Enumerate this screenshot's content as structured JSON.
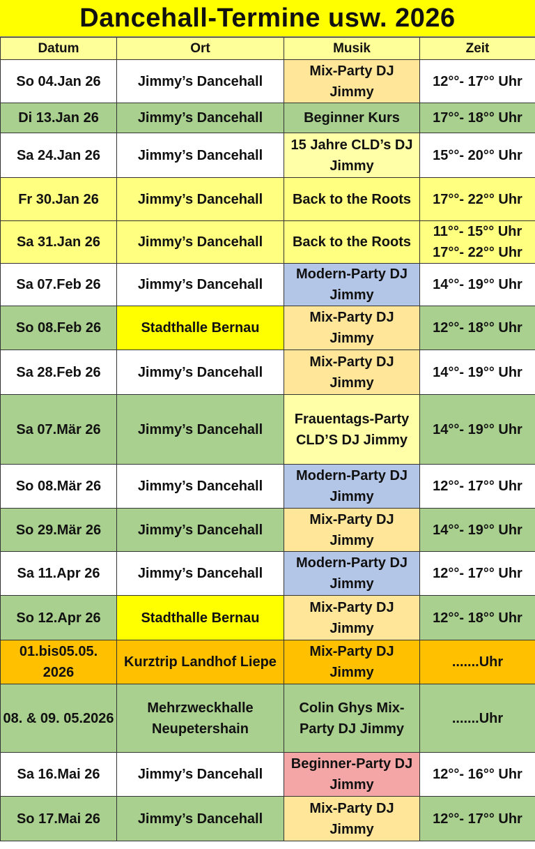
{
  "title": "Dancehall-Termine usw. 2026",
  "headers": [
    "Datum",
    "Ort",
    "Musik",
    "Zeit"
  ],
  "colors": {
    "white": "#ffffff",
    "green": "#a9d08e",
    "yellow_row": "#ffff80",
    "yellow": "#ffff00",
    "light_yellow": "#ffffa8",
    "peach": "#ffe699",
    "blue": "#b4c6e7",
    "orange": "#ffc000",
    "pink": "#f4a6a6",
    "header": "#ffff99"
  },
  "rows": [
    {
      "datum": "So 04.Jan 26",
      "ort": "Jimmy’s Dancehall",
      "musik": "Mix-Party DJ Jimmy",
      "zeit": "12°°- 17°° Uhr",
      "bg": "white",
      "musik_bg": "peach"
    },
    {
      "datum": "Di 13.Jan 26",
      "ort": "Jimmy’s Dancehall",
      "musik": "Beginner Kurs",
      "zeit": "17°°- 18°° Uhr",
      "bg": "green"
    },
    {
      "datum": "Sa 24.Jan 26",
      "ort": "Jimmy’s Dancehall",
      "musik": "15 Jahre CLD’s DJ Jimmy",
      "zeit": "15°°- 20°° Uhr",
      "bg": "white",
      "musik_bg": "light_yellow"
    },
    {
      "datum": "Fr 30.Jan 26",
      "ort": "Jimmy’s Dancehall",
      "musik": "Back to the Roots",
      "zeit": "17°°- 22°° Uhr",
      "bg": "yellow_row"
    },
    {
      "datum": "Sa 31.Jan 26",
      "ort": "Jimmy’s Dancehall",
      "musik": "Back to the Roots",
      "zeit": "11°°- 15°° Uhr\n17°°- 22°° Uhr",
      "bg": "yellow_row"
    },
    {
      "datum": "Sa 07.Feb 26",
      "ort": "Jimmy’s Dancehall",
      "musik": "Modern-Party DJ Jimmy",
      "zeit": "14°°- 19°° Uhr",
      "bg": "white",
      "musik_bg": "blue"
    },
    {
      "datum": "So 08.Feb 26",
      "ort": "Stadthalle Bernau",
      "musik": "Mix-Party DJ Jimmy",
      "zeit": "12°°- 18°° Uhr",
      "bg": "green",
      "ort_bg": "yellow",
      "musik_bg": "peach"
    },
    {
      "datum": "Sa 28.Feb 26",
      "ort": "Jimmy’s Dancehall",
      "musik": "Mix-Party DJ Jimmy",
      "zeit": "14°°- 19°° Uhr",
      "bg": "white",
      "musik_bg": "peach"
    },
    {
      "datum": "Sa 07.Mär 26",
      "ort": "Jimmy’s Dancehall",
      "musik": "Frauentags-Party CLD’S DJ Jimmy",
      "zeit": "14°°- 19°° Uhr",
      "bg": "green",
      "musik_bg": "light_yellow"
    },
    {
      "datum": "So 08.Mär 26",
      "ort": "Jimmy’s Dancehall",
      "musik": "Modern-Party DJ Jimmy",
      "zeit": "12°°- 17°° Uhr",
      "bg": "white",
      "musik_bg": "blue"
    },
    {
      "datum": "So 29.Mär 26",
      "ort": "Jimmy’s Dancehall",
      "musik": "Mix-Party DJ Jimmy",
      "zeit": "14°°- 19°° Uhr",
      "bg": "green",
      "musik_bg": "peach"
    },
    {
      "datum": "Sa 11.Apr 26",
      "ort": "Jimmy’s Dancehall",
      "musik": "Modern-Party DJ Jimmy",
      "zeit": "12°°- 17°° Uhr",
      "bg": "white",
      "musik_bg": "blue"
    },
    {
      "datum": "So 12.Apr 26",
      "ort": "Stadthalle Bernau",
      "musik": "Mix-Party DJ Jimmy",
      "zeit": "12°°- 18°° Uhr",
      "bg": "green",
      "ort_bg": "yellow",
      "musik_bg": "peach"
    },
    {
      "datum": "01.bis05.05. 2026",
      "ort": "Kurztrip Landhof Liepe",
      "musik": "Mix-Party DJ Jimmy",
      "zeit": ".......Uhr",
      "bg": "orange"
    },
    {
      "datum": "08. & 09. 05.2026",
      "ort": "Mehrzweckhalle Neupetershain",
      "musik": "Colin Ghys  Mix-Party DJ Jimmy",
      "zeit": ".......Uhr",
      "bg": "green"
    },
    {
      "datum": "Sa 16.Mai 26",
      "ort": "Jimmy’s Dancehall",
      "musik": "Beginner-Party DJ Jimmy",
      "zeit": "12°°- 16°° Uhr",
      "bg": "white",
      "musik_bg": "pink"
    },
    {
      "datum": "So 17.Mai 26",
      "ort": "Jimmy’s Dancehall",
      "musik": "Mix-Party DJ Jimmy",
      "zeit": "12°°- 17°° Uhr",
      "bg": "green",
      "musik_bg": "peach"
    }
  ]
}
